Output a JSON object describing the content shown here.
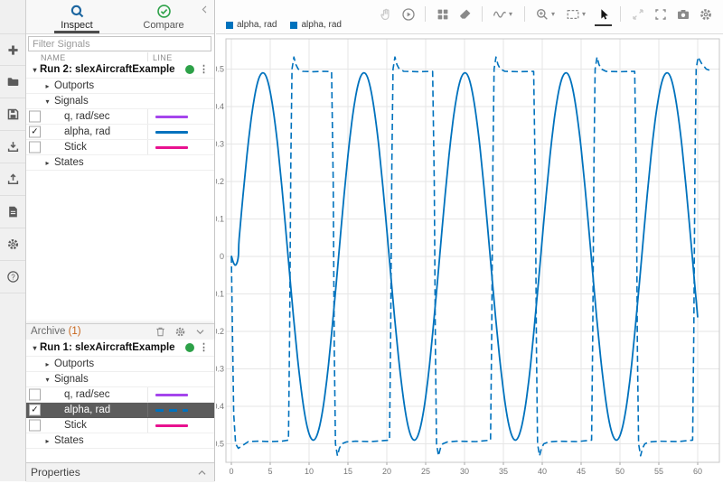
{
  "left_toolstrip": {
    "icons": [
      "import-data-icon",
      "open-session-icon",
      "save-session-icon",
      "import-icon",
      "export-icon",
      "report-icon",
      "preferences-gear-icon",
      "help-icon"
    ]
  },
  "sidebar": {
    "tabs": [
      {
        "label": "Inspect",
        "icon": "search-icon",
        "active": true
      },
      {
        "label": "Compare",
        "icon": "check-circle-icon",
        "active": false
      }
    ],
    "collapse_icon": "chevron-left-icon",
    "filter_placeholder": "Filter Signals",
    "columns": [
      "NAME",
      "LINE"
    ],
    "runs": [
      {
        "label": "Run 2: slexAircraftExample[Current]",
        "status_color": "#2DA148",
        "rows": [
          {
            "type": "group",
            "label": "Outports",
            "expanded": false
          },
          {
            "type": "group",
            "label": "Signals",
            "expanded": true
          },
          {
            "type": "signal",
            "name": "q, rad/sec",
            "color": "#A545EC",
            "checked": false,
            "dash": false,
            "selected": false
          },
          {
            "type": "signal",
            "name": "alpha, rad",
            "color": "#0072BD",
            "checked": true,
            "dash": false,
            "selected": false
          },
          {
            "type": "signal",
            "name": "Stick",
            "color": "#E8118F",
            "checked": false,
            "dash": false,
            "selected": false
          },
          {
            "type": "group",
            "label": "States",
            "expanded": false
          }
        ]
      },
      {
        "label": "Run 1: slexAircraftExample",
        "status_color": "#2DA148",
        "rows": [
          {
            "type": "group",
            "label": "Outports",
            "expanded": false
          },
          {
            "type": "group",
            "label": "Signals",
            "expanded": true
          },
          {
            "type": "signal",
            "name": "q, rad/sec",
            "color": "#A545EC",
            "checked": false,
            "dash": false,
            "selected": false
          },
          {
            "type": "signal",
            "name": "alpha, rad",
            "color": "#0072BD",
            "checked": true,
            "dash": true,
            "selected": true
          },
          {
            "type": "signal",
            "name": "Stick",
            "color": "#E8118F",
            "checked": false,
            "dash": false,
            "selected": false
          },
          {
            "type": "group",
            "label": "States",
            "expanded": false
          }
        ]
      }
    ],
    "archive": {
      "label": "Archive",
      "count": "(1)",
      "icons": [
        "trash-icon",
        "gear-icon",
        "chevron-down-icon"
      ]
    },
    "properties_label": "Properties"
  },
  "toolbar": {
    "groups": [
      [
        {
          "name": "pan-hand",
          "disabled": true
        },
        {
          "name": "replay"
        }
      ],
      [
        {
          "name": "layout-grid"
        },
        {
          "name": "eraser"
        }
      ],
      [
        {
          "name": "signal-wave",
          "menu": true
        }
      ],
      [
        {
          "name": "zoom-in",
          "menu": true
        },
        {
          "name": "fit-to-view",
          "menu": true
        },
        {
          "name": "pointer",
          "active": true
        }
      ],
      [
        {
          "name": "expand",
          "disabled": true
        },
        {
          "name": "fullscreen"
        },
        {
          "name": "snapshot"
        },
        {
          "name": "settings"
        }
      ]
    ]
  },
  "legend": {
    "items": [
      {
        "label": "alpha, rad",
        "color": "#0072BD"
      },
      {
        "label": "alpha, rad",
        "color": "#0072BD"
      }
    ]
  },
  "chart_data": {
    "type": "line",
    "title": "",
    "xlabel": "",
    "ylabel": "",
    "xlim": [
      -0.7,
      62.8
    ],
    "ylim": [
      -0.549,
      0.581
    ],
    "grid": true,
    "xticks": [
      0,
      5,
      10,
      15,
      20,
      25,
      30,
      35,
      40,
      45,
      50,
      55,
      60
    ],
    "xtick_labels": [
      "0",
      "5",
      "10",
      "15",
      "20",
      "25",
      "30",
      "35",
      "40",
      "45",
      "50",
      "55",
      "60"
    ],
    "yticks": [
      0.5,
      0.4,
      0.3,
      0.2,
      0.1,
      0,
      -0.1,
      -0.2,
      -0.3,
      -0.4,
      -0.5
    ],
    "ytick_labels": [
      "0.5",
      "0.4",
      "0.3",
      "0.2",
      "0.1",
      "0",
      "-0.1",
      "-0.2",
      "-0.3",
      "-0.4",
      "-0.5"
    ],
    "series": [
      {
        "name": "alpha, rad (Run 1: slexAircraftExample)",
        "color": "#0072BD",
        "style": "dashed",
        "smooth": false,
        "points": [
          [
            0,
            0
          ],
          [
            0.1,
            -0.15
          ],
          [
            0.3,
            -0.42
          ],
          [
            0.55,
            -0.5
          ],
          [
            0.9,
            -0.512
          ],
          [
            1.4,
            -0.505
          ],
          [
            2.2,
            -0.494
          ],
          [
            3.5,
            -0.493
          ],
          [
            5,
            -0.494
          ],
          [
            6.5,
            -0.493
          ],
          [
            7.35,
            -0.49
          ],
          [
            7.5,
            -0.2
          ],
          [
            7.65,
            0.25
          ],
          [
            7.8,
            0.5
          ],
          [
            8.05,
            0.532
          ],
          [
            8.3,
            0.512
          ],
          [
            8.6,
            0.5
          ],
          [
            9.2,
            0.494
          ],
          [
            10.5,
            0.493
          ],
          [
            12,
            0.494
          ],
          [
            12.9,
            0.493
          ],
          [
            13.1,
            0.2
          ],
          [
            13.25,
            -0.25
          ],
          [
            13.4,
            -0.5
          ],
          [
            13.65,
            -0.532
          ],
          [
            13.9,
            -0.512
          ],
          [
            14.2,
            -0.5
          ],
          [
            14.8,
            -0.495
          ],
          [
            16,
            -0.493
          ],
          [
            18,
            -0.494
          ],
          [
            20.35,
            -0.49
          ],
          [
            20.5,
            -0.2
          ],
          [
            20.65,
            0.25
          ],
          [
            20.8,
            0.5
          ],
          [
            21.05,
            0.532
          ],
          [
            21.3,
            0.512
          ],
          [
            21.6,
            0.5
          ],
          [
            22.2,
            0.494
          ],
          [
            24,
            0.493
          ],
          [
            25.9,
            0.494
          ],
          [
            26.1,
            0.2
          ],
          [
            26.25,
            -0.25
          ],
          [
            26.4,
            -0.5
          ],
          [
            26.65,
            -0.532
          ],
          [
            26.9,
            -0.512
          ],
          [
            27.2,
            -0.5
          ],
          [
            27.8,
            -0.495
          ],
          [
            29,
            -0.493
          ],
          [
            31.5,
            -0.494
          ],
          [
            33.35,
            -0.49
          ],
          [
            33.5,
            -0.2
          ],
          [
            33.65,
            0.25
          ],
          [
            33.8,
            0.5
          ],
          [
            34.05,
            0.532
          ],
          [
            34.3,
            0.512
          ],
          [
            34.6,
            0.5
          ],
          [
            35.2,
            0.494
          ],
          [
            37,
            0.493
          ],
          [
            38.9,
            0.494
          ],
          [
            39.1,
            0.2
          ],
          [
            39.25,
            -0.25
          ],
          [
            39.4,
            -0.5
          ],
          [
            39.65,
            -0.532
          ],
          [
            39.9,
            -0.512
          ],
          [
            40.2,
            -0.5
          ],
          [
            40.8,
            -0.495
          ],
          [
            42,
            -0.493
          ],
          [
            44.5,
            -0.494
          ],
          [
            46.35,
            -0.49
          ],
          [
            46.5,
            -0.2
          ],
          [
            46.65,
            0.25
          ],
          [
            46.8,
            0.5
          ],
          [
            47.05,
            0.532
          ],
          [
            47.3,
            0.512
          ],
          [
            47.6,
            0.5
          ],
          [
            48.2,
            0.494
          ],
          [
            50,
            0.493
          ],
          [
            51.9,
            0.494
          ],
          [
            52.1,
            0.2
          ],
          [
            52.25,
            -0.25
          ],
          [
            52.4,
            -0.5
          ],
          [
            52.65,
            -0.532
          ],
          [
            52.9,
            -0.512
          ],
          [
            53.2,
            -0.5
          ],
          [
            53.8,
            -0.495
          ],
          [
            55,
            -0.493
          ],
          [
            57.5,
            -0.494
          ],
          [
            59.35,
            -0.49
          ],
          [
            59.5,
            -0.2
          ],
          [
            59.65,
            0.25
          ],
          [
            59.8,
            0.5
          ],
          [
            60.05,
            0.532
          ],
          [
            60.5,
            0.515
          ],
          [
            61.1,
            0.5
          ],
          [
            61.5,
            0.497
          ]
        ]
      },
      {
        "name": "alpha, rad (Run 2: slexAircraftExample[Current])",
        "color": "#0072BD",
        "style": "solid",
        "smooth": true,
        "points": [
          [
            0,
            0.002
          ],
          [
            0.3,
            -0.018
          ],
          [
            0.6,
            -0.022
          ],
          [
            0.9,
            0
          ],
          [
            1,
            0.047
          ],
          [
            1.5,
            0.163
          ],
          [
            2,
            0.269
          ],
          [
            2.5,
            0.359
          ],
          [
            3,
            0.428
          ],
          [
            3.5,
            0.473
          ],
          [
            4,
            0.49
          ],
          [
            4.5,
            0.479
          ],
          [
            5,
            0.439
          ],
          [
            5.5,
            0.374
          ],
          [
            6,
            0.289
          ],
          [
            6.5,
            0.185
          ],
          [
            7,
            0.071
          ],
          [
            7.5,
            -0.047
          ],
          [
            8,
            -0.163
          ],
          [
            8.5,
            -0.268
          ],
          [
            9,
            -0.357
          ],
          [
            9.5,
            -0.428
          ],
          [
            10,
            -0.473
          ],
          [
            10.5,
            -0.49
          ],
          [
            11,
            -0.478
          ],
          [
            11.5,
            -0.439
          ],
          [
            12,
            -0.375
          ],
          [
            12.5,
            -0.289
          ],
          [
            13,
            -0.183
          ],
          [
            13.5,
            -0.071
          ],
          [
            14,
            0.047
          ],
          [
            14.5,
            0.163
          ],
          [
            15,
            0.269
          ],
          [
            15.5,
            0.359
          ],
          [
            16,
            0.428
          ],
          [
            16.5,
            0.473
          ],
          [
            17,
            0.49
          ],
          [
            17.5,
            0.479
          ],
          [
            18,
            0.439
          ],
          [
            18.5,
            0.374
          ],
          [
            19,
            0.289
          ],
          [
            19.5,
            0.185
          ],
          [
            20,
            0.071
          ],
          [
            20.5,
            -0.047
          ],
          [
            21,
            -0.163
          ],
          [
            21.5,
            -0.268
          ],
          [
            22,
            -0.357
          ],
          [
            22.5,
            -0.428
          ],
          [
            23,
            -0.473
          ],
          [
            23.5,
            -0.49
          ],
          [
            24,
            -0.478
          ],
          [
            24.5,
            -0.439
          ],
          [
            25,
            -0.375
          ],
          [
            25.5,
            -0.289
          ],
          [
            26,
            -0.183
          ],
          [
            26.5,
            -0.071
          ],
          [
            27,
            0.047
          ],
          [
            27.5,
            0.163
          ],
          [
            28,
            0.269
          ],
          [
            28.5,
            0.359
          ],
          [
            29,
            0.428
          ],
          [
            29.5,
            0.473
          ],
          [
            30,
            0.49
          ],
          [
            30.5,
            0.479
          ],
          [
            31,
            0.439
          ],
          [
            31.5,
            0.374
          ],
          [
            32,
            0.289
          ],
          [
            32.5,
            0.185
          ],
          [
            33,
            0.071
          ],
          [
            33.5,
            -0.047
          ],
          [
            34,
            -0.163
          ],
          [
            34.5,
            -0.268
          ],
          [
            35,
            -0.357
          ],
          [
            35.5,
            -0.428
          ],
          [
            36,
            -0.473
          ],
          [
            36.5,
            -0.49
          ],
          [
            37,
            -0.478
          ],
          [
            37.5,
            -0.439
          ],
          [
            38,
            -0.375
          ],
          [
            38.5,
            -0.289
          ],
          [
            39,
            -0.183
          ],
          [
            39.5,
            -0.071
          ],
          [
            40,
            0.047
          ],
          [
            40.5,
            0.163
          ],
          [
            41,
            0.269
          ],
          [
            41.5,
            0.359
          ],
          [
            42,
            0.428
          ],
          [
            42.5,
            0.473
          ],
          [
            43,
            0.49
          ],
          [
            43.5,
            0.479
          ],
          [
            44,
            0.439
          ],
          [
            44.5,
            0.374
          ],
          [
            45,
            0.289
          ],
          [
            45.5,
            0.185
          ],
          [
            46,
            0.071
          ],
          [
            46.5,
            -0.047
          ],
          [
            47,
            -0.163
          ],
          [
            47.5,
            -0.268
          ],
          [
            48,
            -0.357
          ],
          [
            48.5,
            -0.428
          ],
          [
            49,
            -0.473
          ],
          [
            49.5,
            -0.49
          ],
          [
            50,
            -0.478
          ],
          [
            50.5,
            -0.439
          ],
          [
            51,
            -0.375
          ],
          [
            51.5,
            -0.289
          ],
          [
            52,
            -0.183
          ],
          [
            52.5,
            -0.071
          ],
          [
            53,
            0.047
          ],
          [
            53.5,
            0.163
          ],
          [
            54,
            0.269
          ],
          [
            54.5,
            0.359
          ],
          [
            55,
            0.428
          ],
          [
            55.5,
            0.473
          ],
          [
            56,
            0.49
          ],
          [
            56.5,
            0.479
          ],
          [
            57,
            0.439
          ],
          [
            57.5,
            0.374
          ],
          [
            58,
            0.289
          ],
          [
            58.5,
            0.185
          ],
          [
            59,
            0.071
          ],
          [
            59.5,
            -0.047
          ],
          [
            60,
            -0.163
          ]
        ]
      }
    ]
  }
}
